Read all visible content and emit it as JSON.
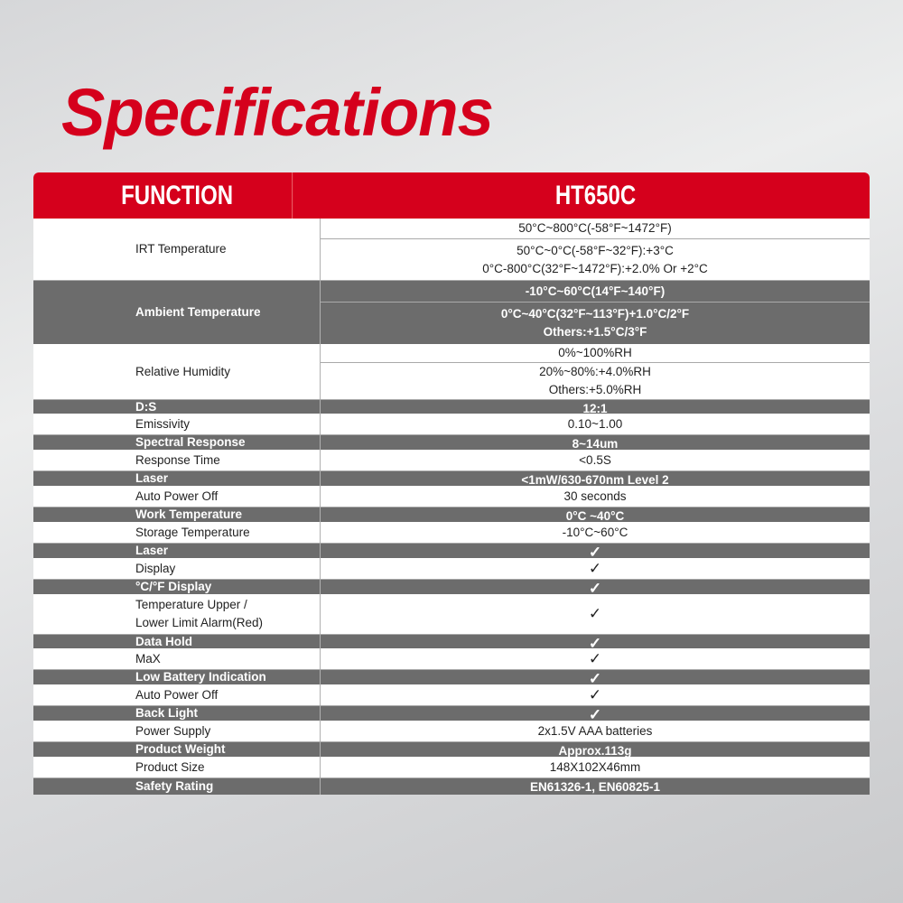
{
  "title": "Specifications",
  "colors": {
    "accent": "#d5001c",
    "gray_row": "#6c6c6c"
  },
  "header": {
    "function": "FUNCTION",
    "model": "HT650C"
  },
  "rows": [
    {
      "label": [
        "IRT Temperature"
      ],
      "shade": "white",
      "h": 69,
      "values": [
        [
          "50°C~800°C(-58°F~1472°F)"
        ],
        [
          "50°C~0°C(-58°F~32°F):+3°C",
          "0°C-800°C(32°F~1472°F):+2.0% Or +2°C"
        ]
      ]
    },
    {
      "label": [
        "Ambient Temperature"
      ],
      "shade": "gray",
      "h": 70,
      "values": [
        [
          "-10°C~60°C(14°F~140°F)"
        ],
        [
          "0°C~40°C(32°F~113°F)+1.0°C/2°F",
          "Others:+1.5°C/3°F"
        ]
      ]
    },
    {
      "label": [
        "Relative Humidity"
      ],
      "shade": "white",
      "h": 62,
      "values": [
        [
          "0%~100%RH"
        ],
        [
          "20%~80%:+4.0%RH",
          "Others:+5.0%RH"
        ]
      ]
    },
    {
      "label": [
        "D:S"
      ],
      "shade": "gray",
      "h": 15,
      "values": [
        [
          "12:1"
        ]
      ]
    },
    {
      "label": [
        "Emissivity"
      ],
      "shade": "white",
      "h": 24,
      "values": [
        [
          "0.10~1.00"
        ]
      ]
    },
    {
      "label": [
        "Spectral Response"
      ],
      "shade": "gray",
      "h": 16,
      "values": [
        [
          "8~14um"
        ]
      ]
    },
    {
      "label": [
        "Response Time"
      ],
      "shade": "white",
      "h": 24,
      "values": [
        [
          "<0.5S"
        ]
      ]
    },
    {
      "label": [
        "Laser"
      ],
      "shade": "gray",
      "h": 16,
      "values": [
        [
          "<1mW/630-670nm Level 2"
        ]
      ]
    },
    {
      "label": [
        "Auto Power Off"
      ],
      "shade": "white",
      "h": 24,
      "values": [
        [
          "30 seconds"
        ]
      ]
    },
    {
      "label": [
        "Work Temperature"
      ],
      "shade": "gray",
      "h": 16,
      "values": [
        [
          "0°C ~40°C"
        ]
      ]
    },
    {
      "label": [
        "Storage Temperature"
      ],
      "shade": "white",
      "h": 24,
      "values": [
        [
          "-10°C~60°C"
        ]
      ]
    },
    {
      "label": [
        "Laser"
      ],
      "shade": "gray",
      "h": 16,
      "values": [
        [
          "✓"
        ]
      ]
    },
    {
      "label": [
        "Display"
      ],
      "shade": "white",
      "h": 24,
      "values": [
        [
          "✓"
        ]
      ]
    },
    {
      "label": [
        "°C/°F Display"
      ],
      "shade": "gray",
      "h": 16,
      "values": [
        [
          "✓"
        ]
      ]
    },
    {
      "label": [
        "Temperature Upper /",
        "Lower Limit Alarm(Red)"
      ],
      "shade": "white",
      "h": 45,
      "values": [
        [
          "✓"
        ]
      ]
    },
    {
      "label": [
        "Data Hold"
      ],
      "shade": "gray",
      "h": 15,
      "values": [
        [
          "✓"
        ]
      ]
    },
    {
      "label": [
        "MaX"
      ],
      "shade": "white",
      "h": 24,
      "values": [
        [
          "✓"
        ]
      ]
    },
    {
      "label": [
        "Low Battery Indication"
      ],
      "shade": "gray",
      "h": 16,
      "values": [
        [
          "✓"
        ]
      ]
    },
    {
      "label": [
        "Auto Power Off"
      ],
      "shade": "white",
      "h": 24,
      "values": [
        [
          "✓"
        ]
      ]
    },
    {
      "label": [
        "Back Light"
      ],
      "shade": "gray",
      "h": 16,
      "values": [
        [
          "✓"
        ]
      ]
    },
    {
      "label": [
        "Power Supply"
      ],
      "shade": "white",
      "h": 24,
      "values": [
        [
          "2x1.5V AAA batteries"
        ]
      ]
    },
    {
      "label": [
        "Product Weight"
      ],
      "shade": "gray",
      "h": 16,
      "values": [
        [
          "Approx.113g"
        ]
      ]
    },
    {
      "label": [
        "Product Size"
      ],
      "shade": "white",
      "h": 24,
      "values": [
        [
          "148X102X46mm"
        ]
      ]
    },
    {
      "label": [
        "Safety Rating"
      ],
      "shade": "gray",
      "h": 18,
      "values": [
        [
          "EN61326-1,  EN60825-1"
        ]
      ]
    }
  ]
}
